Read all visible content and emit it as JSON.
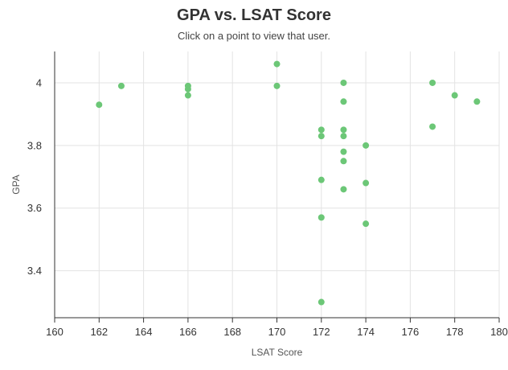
{
  "title": "GPA vs. LSAT Score",
  "subtitle": "Click on a point to view that user.",
  "chart_data": {
    "type": "scatter",
    "title": "GPA vs. LSAT Score",
    "subtitle": "Click on a point to view that user.",
    "xlabel": "LSAT Score",
    "ylabel": "GPA",
    "xlim": [
      160,
      180
    ],
    "ylim": [
      3.25,
      4.1
    ],
    "xticks": [
      160,
      162,
      164,
      166,
      168,
      170,
      172,
      174,
      176,
      178,
      180
    ],
    "yticks": [
      3.4,
      3.6,
      3.8,
      4
    ],
    "ytick_labels": [
      "3.4",
      "3.6",
      "3.8",
      "4"
    ],
    "grid": true,
    "point_color": "#6cc777",
    "points": [
      {
        "x": 162,
        "y": 3.93
      },
      {
        "x": 163,
        "y": 3.99
      },
      {
        "x": 166,
        "y": 3.99
      },
      {
        "x": 166,
        "y": 3.98
      },
      {
        "x": 166,
        "y": 3.96
      },
      {
        "x": 170,
        "y": 4.06
      },
      {
        "x": 170,
        "y": 3.99
      },
      {
        "x": 172,
        "y": 3.85
      },
      {
        "x": 172,
        "y": 3.83
      },
      {
        "x": 172,
        "y": 3.69
      },
      {
        "x": 172,
        "y": 3.57
      },
      {
        "x": 172,
        "y": 3.3
      },
      {
        "x": 173,
        "y": 4.0
      },
      {
        "x": 173,
        "y": 3.94
      },
      {
        "x": 173,
        "y": 3.85
      },
      {
        "x": 173,
        "y": 3.83
      },
      {
        "x": 173,
        "y": 3.78
      },
      {
        "x": 173,
        "y": 3.75
      },
      {
        "x": 173,
        "y": 3.66
      },
      {
        "x": 174,
        "y": 3.8
      },
      {
        "x": 174,
        "y": 3.68
      },
      {
        "x": 174,
        "y": 3.55
      },
      {
        "x": 177,
        "y": 4.0
      },
      {
        "x": 177,
        "y": 3.86
      },
      {
        "x": 178,
        "y": 3.96
      },
      {
        "x": 179,
        "y": 3.94
      }
    ]
  }
}
